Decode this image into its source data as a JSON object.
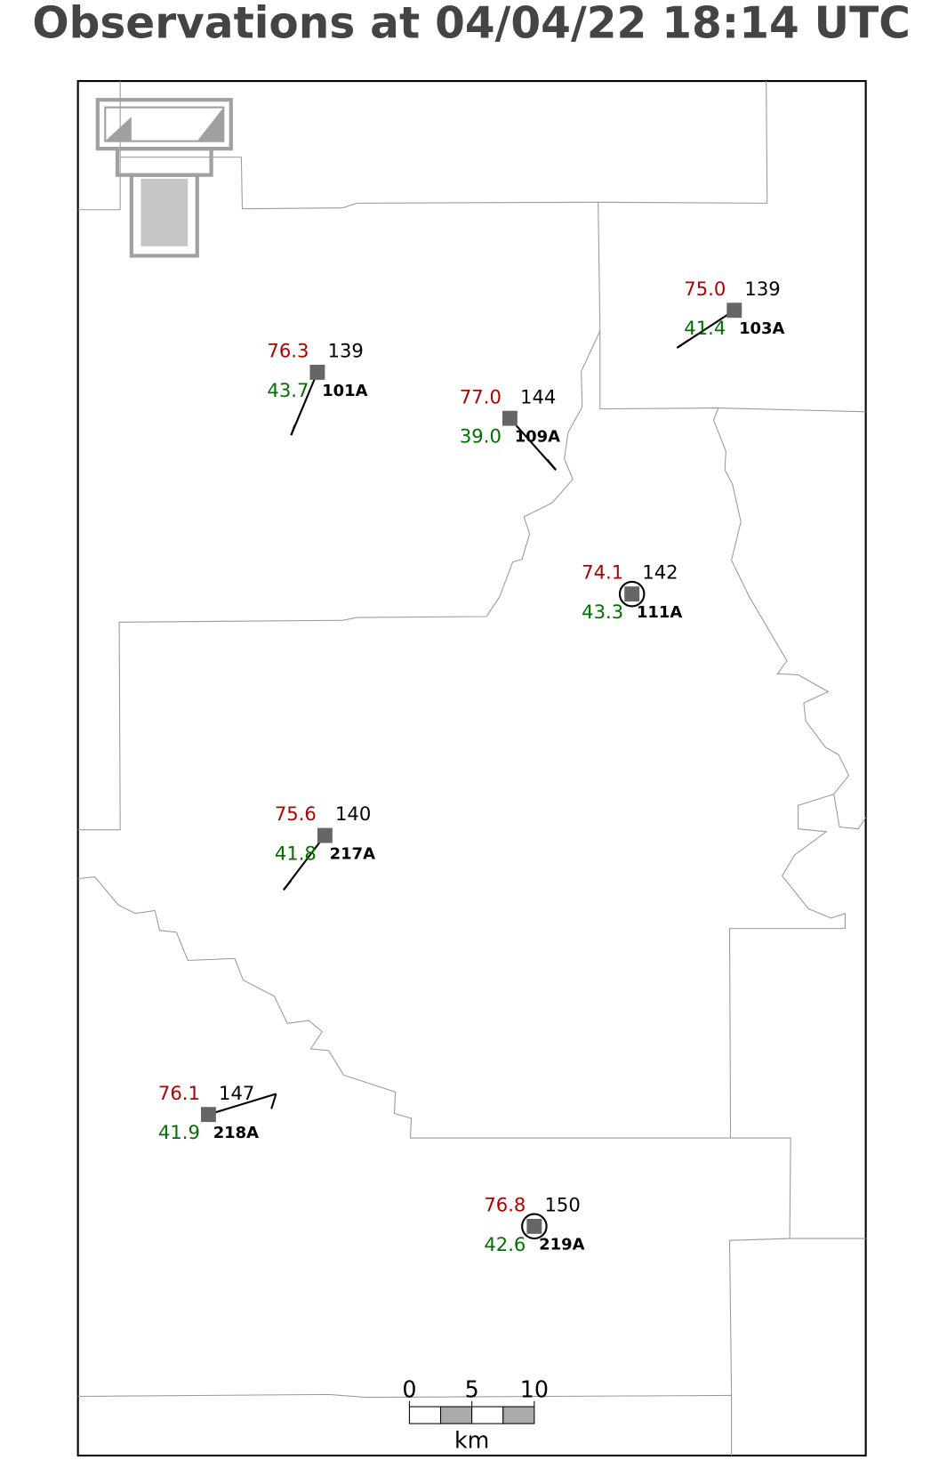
{
  "title": "Observations at 04/04/22 18:14 UTC",
  "stations": [
    {
      "id": "103A",
      "temperature": "75.0",
      "dewpoint": "41.4",
      "pressure": 139
    },
    {
      "id": "101A",
      "temperature": "76.3",
      "dewpoint": "43.7",
      "pressure": 139
    },
    {
      "id": "109A",
      "temperature": "77.0",
      "dewpoint": "39.0",
      "pressure": 144
    },
    {
      "id": "111A",
      "temperature": "74.1",
      "dewpoint": "43.3",
      "pressure": 142
    },
    {
      "id": "217A",
      "temperature": "75.6",
      "dewpoint": "41.8",
      "pressure": 140
    },
    {
      "id": "218A",
      "temperature": "76.1",
      "dewpoint": "41.9",
      "pressure": 147
    },
    {
      "id": "219A",
      "temperature": "76.8",
      "dewpoint": "42.6",
      "pressure": 150
    }
  ],
  "scale_bar": {
    "ticks": [
      0,
      5,
      10
    ],
    "unit": "km"
  }
}
